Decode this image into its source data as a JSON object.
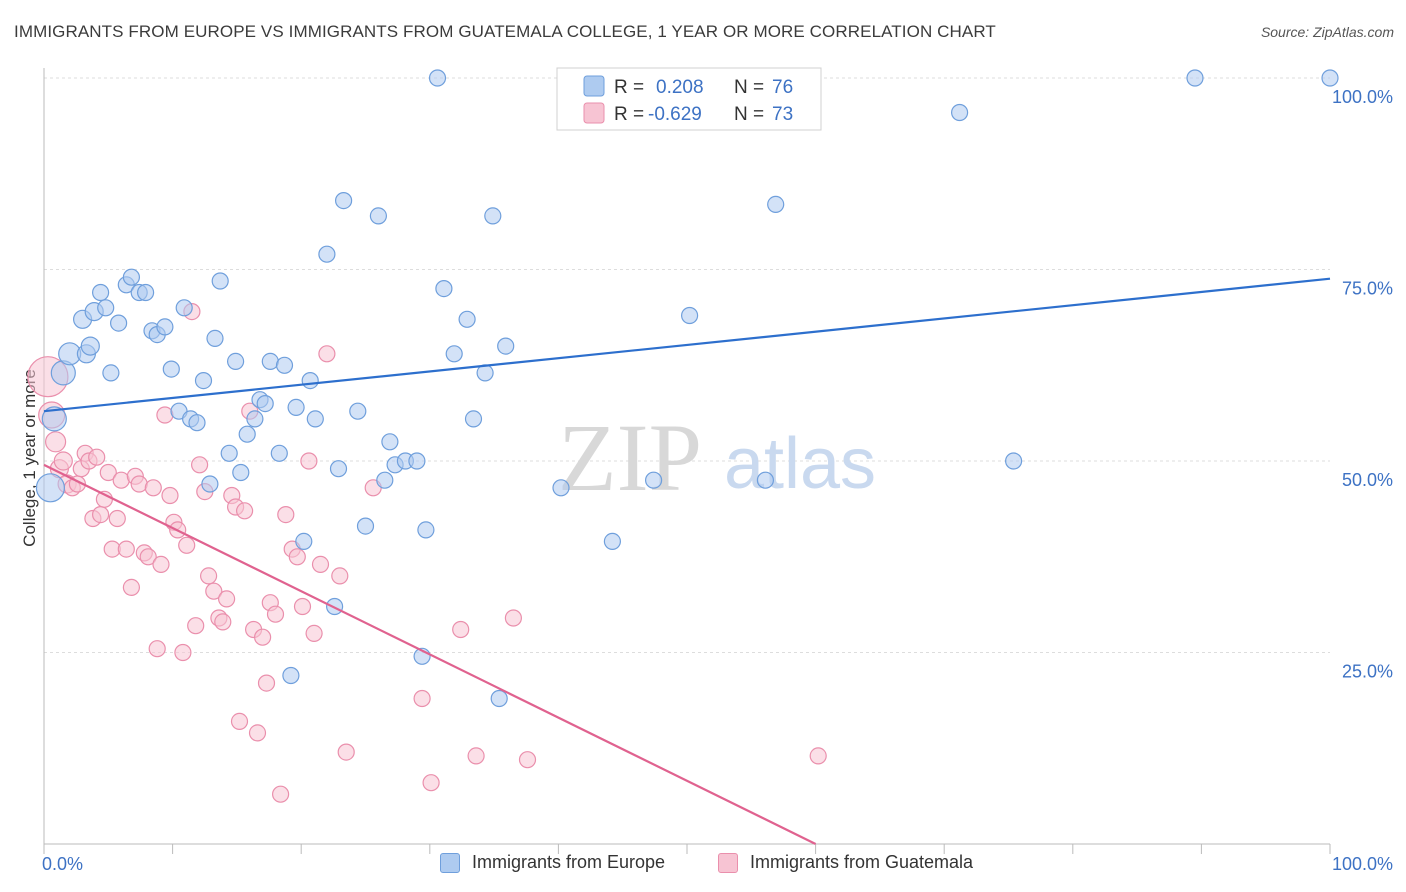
{
  "header": {
    "title": "IMMIGRANTS FROM EUROPE VS IMMIGRANTS FROM GUATEMALA COLLEGE, 1 YEAR OR MORE CORRELATION CHART",
    "source": "Source: ZipAtlas.com"
  },
  "watermark": {
    "zip": "ZIP",
    "atlas": "atlas"
  },
  "colors": {
    "europe_fill": "#aecbf0",
    "europe_stroke": "#6f9fdc",
    "europe_line": "#2d6fcd",
    "guatemala_fill": "#f7c4d3",
    "guatemala_stroke": "#ea8fac",
    "guatemala_line": "#e0628f",
    "tick_label": "#3d72c4",
    "grid": "#dddddd"
  },
  "legend_top": {
    "europe": {
      "r_label": "R =",
      "r_value": "0.208",
      "n_label": "N =",
      "n_value": "76"
    },
    "guatemala": {
      "r_label": "R =",
      "r_value": "-0.629",
      "n_label": "N =",
      "n_value": "73"
    }
  },
  "chart_data": {
    "type": "scatter",
    "title": "IMMIGRANTS FROM EUROPE VS IMMIGRANTS FROM GUATEMALA COLLEGE, 1 YEAR OR MORE CORRELATION CHART",
    "xlabel": "",
    "ylabel": "College, 1 year or more",
    "xlim": [
      0,
      100
    ],
    "ylim": [
      0,
      100
    ],
    "x_tick_labels": [
      "0.0%",
      "100.0%"
    ],
    "y_tick_labels": [
      "25.0%",
      "50.0%",
      "75.0%",
      "100.0%"
    ],
    "y_ticks": [
      25,
      50,
      75,
      100
    ],
    "grid": true,
    "legend_position": "top-center",
    "series": [
      {
        "name": "Immigrants from Europe",
        "r": 0.208,
        "n": 76,
        "trend": {
          "x": [
            0,
            100
          ],
          "y": [
            56.5,
            73.8
          ]
        },
        "points": [
          [
            0.5,
            46.5,
            14
          ],
          [
            0.8,
            55.5,
            12
          ],
          [
            1.5,
            61.5,
            12
          ],
          [
            2,
            64,
            11
          ],
          [
            3,
            68.5,
            9
          ],
          [
            3.3,
            64,
            9
          ],
          [
            3.6,
            65,
            9
          ],
          [
            3.9,
            69.5,
            9
          ],
          [
            4.4,
            72,
            8
          ],
          [
            4.8,
            70,
            8
          ],
          [
            5.2,
            61.5,
            8
          ],
          [
            5.8,
            68,
            8
          ],
          [
            6.4,
            73,
            8
          ],
          [
            6.8,
            74,
            8
          ],
          [
            7.4,
            72,
            8
          ],
          [
            7.9,
            72,
            8
          ],
          [
            8.4,
            67,
            8
          ],
          [
            8.8,
            66.5,
            8
          ],
          [
            9.4,
            67.5,
            8
          ],
          [
            9.9,
            62,
            8
          ],
          [
            10.5,
            56.5,
            8
          ],
          [
            10.9,
            70,
            8
          ],
          [
            11.4,
            55.5,
            8
          ],
          [
            11.9,
            55,
            8
          ],
          [
            12.4,
            60.5,
            8
          ],
          [
            12.9,
            47,
            8
          ],
          [
            13.3,
            66,
            8
          ],
          [
            13.7,
            73.5,
            8
          ],
          [
            14.4,
            51,
            8
          ],
          [
            14.9,
            63,
            8
          ],
          [
            15.3,
            48.5,
            8
          ],
          [
            15.8,
            53.5,
            8
          ],
          [
            16.4,
            55.5,
            8
          ],
          [
            16.8,
            58,
            8
          ],
          [
            17.2,
            57.5,
            8
          ],
          [
            17.6,
            63,
            8
          ],
          [
            18.3,
            51,
            8
          ],
          [
            18.7,
            62.5,
            8
          ],
          [
            19.2,
            22,
            8
          ],
          [
            19.6,
            57,
            8
          ],
          [
            20.2,
            39.5,
            8
          ],
          [
            20.7,
            60.5,
            8
          ],
          [
            21.1,
            55.5,
            8
          ],
          [
            22.0,
            77,
            8
          ],
          [
            22.6,
            31,
            8
          ],
          [
            22.9,
            49,
            8
          ],
          [
            23.3,
            84,
            8
          ],
          [
            24.4,
            56.5,
            8
          ],
          [
            25,
            41.5,
            8
          ],
          [
            26,
            82,
            8
          ],
          [
            26.5,
            47.5,
            8
          ],
          [
            26.9,
            52.5,
            8
          ],
          [
            27.3,
            49.5,
            8
          ],
          [
            28.1,
            50,
            8
          ],
          [
            29,
            50,
            8
          ],
          [
            29.4,
            24.5,
            8
          ],
          [
            29.7,
            41,
            8
          ],
          [
            30.6,
            100,
            8
          ],
          [
            31.1,
            72.5,
            8
          ],
          [
            31.9,
            64,
            8
          ],
          [
            32.9,
            68.5,
            8
          ],
          [
            33.4,
            55.5,
            8
          ],
          [
            34.3,
            61.5,
            8
          ],
          [
            34.9,
            82,
            8
          ],
          [
            35.4,
            19,
            8
          ],
          [
            35.9,
            65,
            8
          ],
          [
            40.2,
            46.5,
            8
          ],
          [
            44.2,
            39.5,
            8
          ],
          [
            47.4,
            47.5,
            8
          ],
          [
            50.2,
            69,
            8
          ],
          [
            56.1,
            47.5,
            8
          ],
          [
            56.9,
            83.5,
            8
          ],
          [
            71.2,
            95.5,
            8
          ],
          [
            75.4,
            50,
            8
          ],
          [
            89.5,
            100,
            8
          ],
          [
            100,
            100,
            8
          ]
        ]
      },
      {
        "name": "Immigrants from Guatemala",
        "r": -0.629,
        "n": 73,
        "trend": {
          "x": [
            0,
            60
          ],
          "y": [
            49.5,
            0
          ]
        },
        "points": [
          [
            0.3,
            61,
            20
          ],
          [
            0.6,
            56,
            13
          ],
          [
            0.9,
            52.5,
            10
          ],
          [
            1.2,
            49,
            9
          ],
          [
            1.5,
            50,
            9
          ],
          [
            1.8,
            47,
            9
          ],
          [
            2.2,
            46.5,
            8
          ],
          [
            2.6,
            47,
            8
          ],
          [
            2.9,
            49,
            8
          ],
          [
            3.2,
            51,
            8
          ],
          [
            3.5,
            50,
            8
          ],
          [
            3.8,
            42.5,
            8
          ],
          [
            4.1,
            50.5,
            8
          ],
          [
            4.4,
            43,
            8
          ],
          [
            4.7,
            45,
            8
          ],
          [
            5,
            48.5,
            8
          ],
          [
            5.3,
            38.5,
            8
          ],
          [
            5.7,
            42.5,
            8
          ],
          [
            6,
            47.5,
            8
          ],
          [
            6.4,
            38.5,
            8
          ],
          [
            6.8,
            33.5,
            8
          ],
          [
            7.1,
            48,
            8
          ],
          [
            7.4,
            47,
            8
          ],
          [
            7.8,
            38,
            8
          ],
          [
            8.1,
            37.5,
            8
          ],
          [
            8.5,
            46.5,
            8
          ],
          [
            8.8,
            25.5,
            8
          ],
          [
            9.1,
            36.5,
            8
          ],
          [
            9.4,
            56,
            8
          ],
          [
            9.8,
            45.5,
            8
          ],
          [
            10.1,
            42,
            8
          ],
          [
            10.4,
            41,
            8
          ],
          [
            10.8,
            25,
            8
          ],
          [
            11.1,
            39,
            8
          ],
          [
            11.5,
            69.5,
            8
          ],
          [
            11.8,
            28.5,
            8
          ],
          [
            12.1,
            49.5,
            8
          ],
          [
            12.5,
            46,
            8
          ],
          [
            12.8,
            35,
            8
          ],
          [
            13.2,
            33,
            8
          ],
          [
            13.6,
            29.5,
            8
          ],
          [
            13.9,
            29,
            8
          ],
          [
            14.2,
            32,
            8
          ],
          [
            14.6,
            45.5,
            8
          ],
          [
            14.9,
            44,
            8
          ],
          [
            15.2,
            16,
            8
          ],
          [
            15.6,
            43.5,
            8
          ],
          [
            16.0,
            56.5,
            8
          ],
          [
            16.3,
            28,
            8
          ],
          [
            16.6,
            14.5,
            8
          ],
          [
            17,
            27,
            8
          ],
          [
            17.3,
            21,
            8
          ],
          [
            17.6,
            31.5,
            8
          ],
          [
            18,
            30,
            8
          ],
          [
            18.4,
            6.5,
            8
          ],
          [
            18.8,
            43,
            8
          ],
          [
            19.3,
            38.5,
            8
          ],
          [
            19.7,
            37.5,
            8
          ],
          [
            20.1,
            31,
            8
          ],
          [
            20.6,
            50,
            8
          ],
          [
            21.0,
            27.5,
            8
          ],
          [
            21.5,
            36.5,
            8
          ],
          [
            22,
            64,
            8
          ],
          [
            23,
            35,
            8
          ],
          [
            23.5,
            12,
            8
          ],
          [
            25.6,
            46.5,
            8
          ],
          [
            29.4,
            19,
            8
          ],
          [
            30.1,
            8,
            8
          ],
          [
            32.4,
            28,
            8
          ],
          [
            33.6,
            11.5,
            8
          ],
          [
            36.5,
            29.5,
            8
          ],
          [
            37.6,
            11,
            8
          ],
          [
            60.2,
            11.5,
            8
          ]
        ]
      }
    ]
  }
}
